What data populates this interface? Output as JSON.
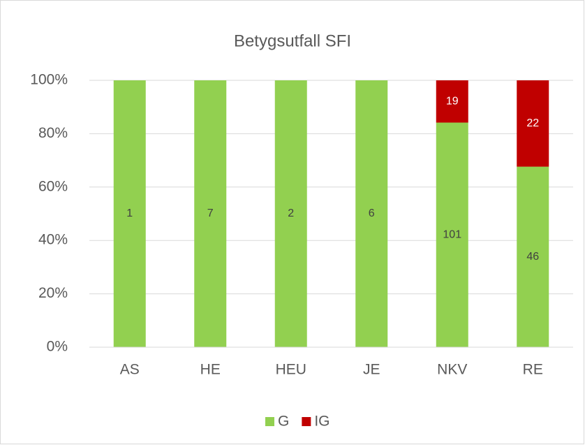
{
  "chart_data": {
    "type": "bar",
    "stack": "percent",
    "title": "Betygsutfall SFI",
    "categories": [
      "AS",
      "HE",
      "HEU",
      "JE",
      "NKV",
      "RE"
    ],
    "series": [
      {
        "name": "G",
        "color": "#92d050",
        "values": [
          1,
          7,
          2,
          6,
          101,
          46
        ]
      },
      {
        "name": "IG",
        "color": "#c00000",
        "values": [
          null,
          null,
          null,
          null,
          19,
          22
        ]
      }
    ],
    "ylim": [
      0,
      100
    ],
    "yticks": [
      {
        "value": 0,
        "label": "0%"
      },
      {
        "value": 20,
        "label": "20%"
      },
      {
        "value": 40,
        "label": "40%"
      },
      {
        "value": 60,
        "label": "60%"
      },
      {
        "value": 80,
        "label": "80%"
      },
      {
        "value": 100,
        "label": "100%"
      }
    ],
    "grid": true,
    "legend": "bottom"
  }
}
